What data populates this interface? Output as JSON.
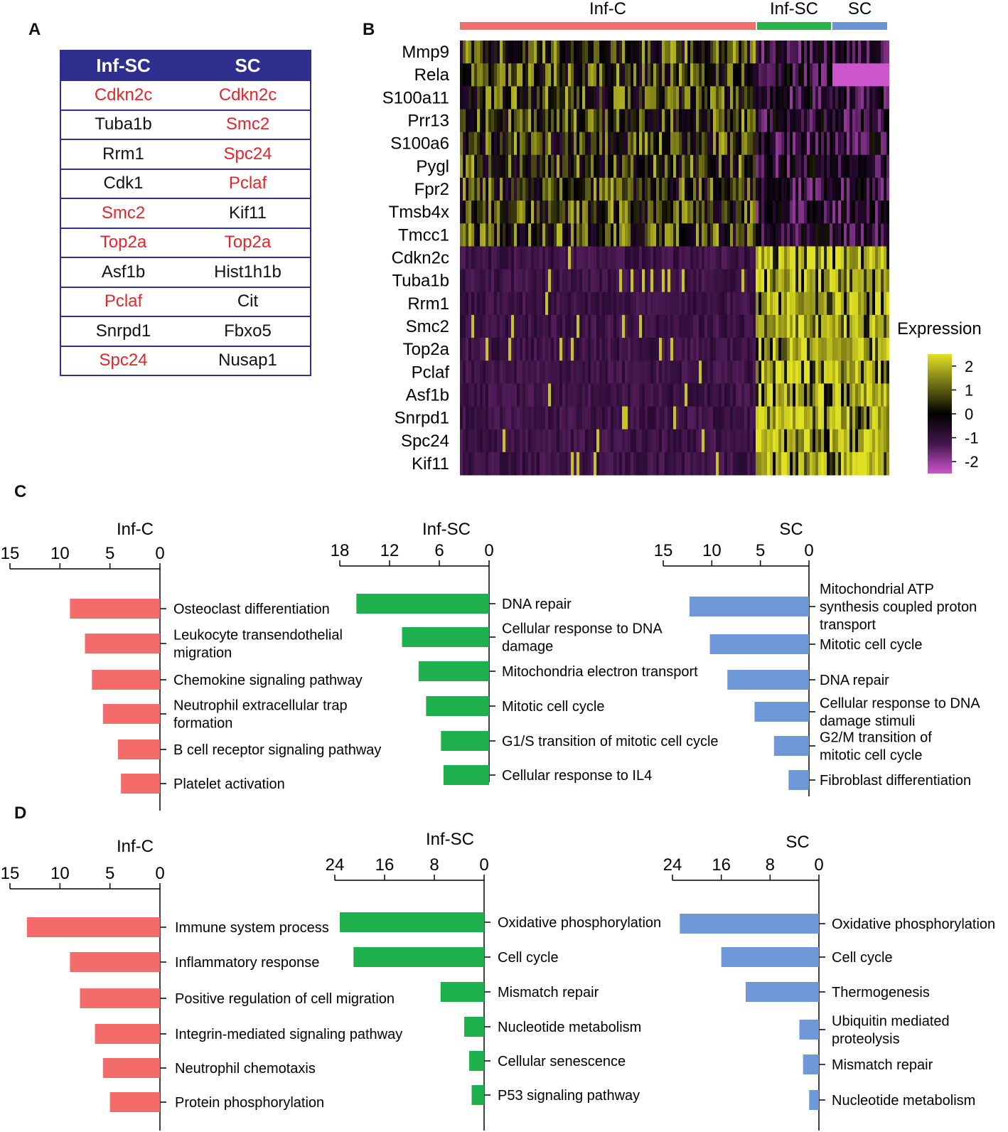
{
  "panels": {
    "A": "A",
    "B": "B",
    "C": "C",
    "D": "D"
  },
  "table_a": {
    "headers": [
      "Inf-SC",
      "SC"
    ],
    "rows": [
      [
        {
          "text": "Cdkn2c",
          "hl": true
        },
        {
          "text": "Cdkn2c",
          "hl": true
        }
      ],
      [
        {
          "text": "Tuba1b",
          "hl": false
        },
        {
          "text": "Smc2",
          "hl": true
        }
      ],
      [
        {
          "text": "Rrm1",
          "hl": false
        },
        {
          "text": "Spc24",
          "hl": true
        }
      ],
      [
        {
          "text": "Cdk1",
          "hl": false
        },
        {
          "text": "Pclaf",
          "hl": true
        }
      ],
      [
        {
          "text": "Smc2",
          "hl": true
        },
        {
          "text": "Kif11",
          "hl": false
        }
      ],
      [
        {
          "text": "Top2a",
          "hl": true
        },
        {
          "text": "Top2a",
          "hl": true
        }
      ],
      [
        {
          "text": "Asf1b",
          "hl": false
        },
        {
          "text": "Hist1h1b",
          "hl": false
        }
      ],
      [
        {
          "text": "Pclaf",
          "hl": true
        },
        {
          "text": "Cit",
          "hl": false
        }
      ],
      [
        {
          "text": "Snrpd1",
          "hl": false
        },
        {
          "text": "Fbxo5",
          "hl": false
        }
      ],
      [
        {
          "text": "Spc24",
          "hl": true
        },
        {
          "text": "Nusap1",
          "hl": false
        }
      ]
    ],
    "header_color": "#2e2f8f",
    "highlight_color": "#e3262b"
  },
  "chart_data": [
    {
      "type": "heatmap",
      "groups": [
        {
          "name": "Inf-C",
          "color": "#ef6f6c"
        },
        {
          "name": "Inf-SC",
          "color": "#2bb34a"
        },
        {
          "name": "SC",
          "color": "#6a95d4"
        }
      ],
      "genes": [
        "Mmp9",
        "Rela",
        "S100a11",
        "Prr13",
        "S100a6",
        "Pygl",
        "Fpr2",
        "Tmsb4x",
        "Tmcc1",
        "Cdkn2c",
        "Tuba1b",
        "Rrm1",
        "Smc2",
        "Top2a",
        "Pclaf",
        "Asf1b",
        "Snrpd1",
        "Spc24",
        "Kif11"
      ],
      "legend_title": "Expression",
      "legend_ticks": [
        2,
        1,
        0,
        -1,
        -2
      ],
      "colorscale": [
        "#cc55cc",
        "#2a0a30",
        "#000000",
        "#d8d820"
      ]
    },
    {
      "type": "bar",
      "panel": "C",
      "title": "Inf-C",
      "color": "#f36b6b",
      "xlim": [
        15,
        0
      ],
      "ticks": [
        15,
        10,
        5,
        0
      ],
      "categories": [
        "Osteoclast differentiation",
        "Leukocyte transendothelial migration",
        "Chemokine signaling pathway",
        "Neutrophil extracellular trap formation",
        "B cell receptor signaling pathway",
        "Platelet activation"
      ],
      "values": [
        9,
        7.5,
        6.8,
        5.7,
        4.2,
        3.9
      ]
    },
    {
      "type": "bar",
      "panel": "C",
      "title": "Inf-SC",
      "color": "#1fb14e",
      "xlim": [
        18,
        0
      ],
      "ticks": [
        18,
        12,
        6,
        0
      ],
      "categories": [
        "DNA repair",
        "Cellular response to DNA damage",
        "Mitochondria electron transport",
        "Mitotic cell cycle",
        "G1/S transition of mitotic cell cycle",
        "Cellular response to IL4"
      ],
      "values": [
        16,
        10.5,
        8.5,
        7.6,
        5.8,
        5.5
      ]
    },
    {
      "type": "bar",
      "panel": "C",
      "title": "SC",
      "color": "#6e98d8",
      "xlim": [
        15,
        0
      ],
      "ticks": [
        15,
        10,
        5,
        0
      ],
      "categories": [
        "Mitochondrial ATP synthesis coupled proton transport",
        "Mitotic cell cycle",
        "DNA repair",
        "Cellular response to DNA damage stimuli",
        "G2/M transition of mitotic cell cycle",
        "Fibroblast differentiation"
      ],
      "values": [
        12.3,
        10.2,
        8.4,
        5.6,
        3.6,
        2.1
      ]
    },
    {
      "type": "bar",
      "panel": "D",
      "title": "Inf-C",
      "color": "#f36b6b",
      "xlim": [
        15,
        0
      ],
      "ticks": [
        15,
        10,
        5,
        0
      ],
      "categories": [
        "Immune system process",
        "Inflammatory response",
        "Positive regulation of cell migration",
        "Integrin-mediated signaling pathway",
        "Neutrophil chemotaxis",
        "Protein phosphorylation"
      ],
      "values": [
        13.3,
        9,
        8,
        6.5,
        5.7,
        5
      ]
    },
    {
      "type": "bar",
      "panel": "D",
      "title": "Inf-SC",
      "color": "#1fb14e",
      "xlim": [
        24,
        0
      ],
      "ticks": [
        24,
        16,
        8,
        0
      ],
      "categories": [
        "Oxidative phosphorylation",
        "Cell cycle",
        "Mismatch repair",
        "Nucleotide metabolism",
        "Cellular senescence",
        "P53 signaling pathway"
      ],
      "values": [
        23.2,
        21,
        7,
        3.2,
        2.4,
        2
      ]
    },
    {
      "type": "bar",
      "panel": "D",
      "title": "SC",
      "color": "#6e98d8",
      "xlim": [
        24,
        0
      ],
      "ticks": [
        24,
        16,
        8,
        0
      ],
      "categories": [
        "Oxidative phosphorylation",
        "Cell cycle",
        "Thermogenesis",
        "Ubiquitin mediated proteolysis",
        "Mismatch repair",
        "Nucleotide metabolism"
      ],
      "values": [
        22.8,
        16,
        12,
        3.2,
        2.6,
        1.6
      ]
    }
  ]
}
